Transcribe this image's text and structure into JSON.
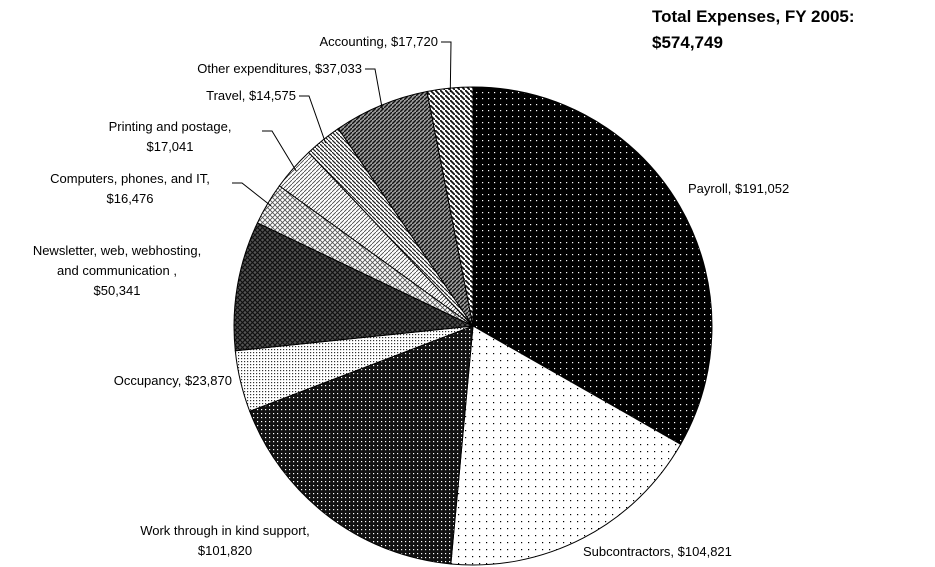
{
  "chart_data": {
    "type": "pie",
    "title": "Total Expenses, FY 2005:\n$574,749",
    "categories": [
      "Payroll, $191,052",
      "Subcontractors, $104,821",
      "Work through in kind support,\n$101,820",
      "Occupancy, $23,870",
      "Newsletter, web, webhosting,\nand communication ,\n$50,341",
      "Computers, phones, and IT,\n$16,476",
      "Printing and postage,\n$17,041",
      "Travel, $14,575",
      "Other expenditures, $37,033",
      "Accounting, $17,720"
    ],
    "values": [
      191052,
      104821,
      101820,
      23870,
      50341,
      16476,
      17041,
      14575,
      37033,
      17720
    ]
  }
}
